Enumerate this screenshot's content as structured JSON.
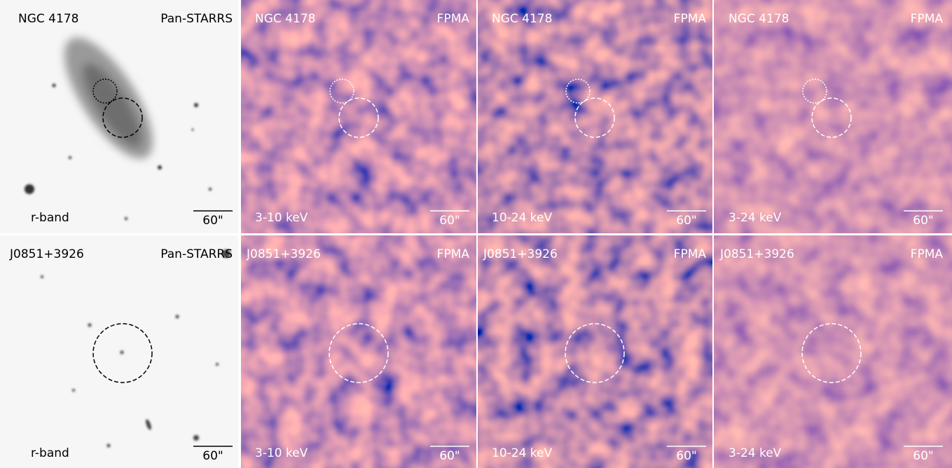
{
  "rows": [
    {
      "panels": [
        {
          "target": "NGC 4178",
          "instrument": "Pan-STARRS",
          "band": "r-band",
          "scale": "60\""
        },
        {
          "target": "NGC 4178",
          "instrument": "FPMA",
          "band": "3-10 keV",
          "scale": "60\""
        },
        {
          "target": "NGC 4178",
          "instrument": "FPMA",
          "band": "10-24 keV",
          "scale": "60\""
        },
        {
          "target": "NGC 4178",
          "instrument": "FPMA",
          "band": "3-24 keV",
          "scale": "60\""
        }
      ]
    },
    {
      "panels": [
        {
          "target": "J0851+3926",
          "instrument": "Pan-STARRS",
          "band": "r-band",
          "scale": "60\""
        },
        {
          "target": "J0851+3926",
          "instrument": "FPMA",
          "band": "3-10 keV",
          "scale": "60\""
        },
        {
          "target": "J0851+3926",
          "instrument": "FPMA",
          "band": "10-24 keV",
          "scale": "60\""
        },
        {
          "target": "J0851+3926",
          "instrument": "FPMA",
          "band": "3-24 keV",
          "scale": "60\""
        }
      ]
    }
  ]
}
